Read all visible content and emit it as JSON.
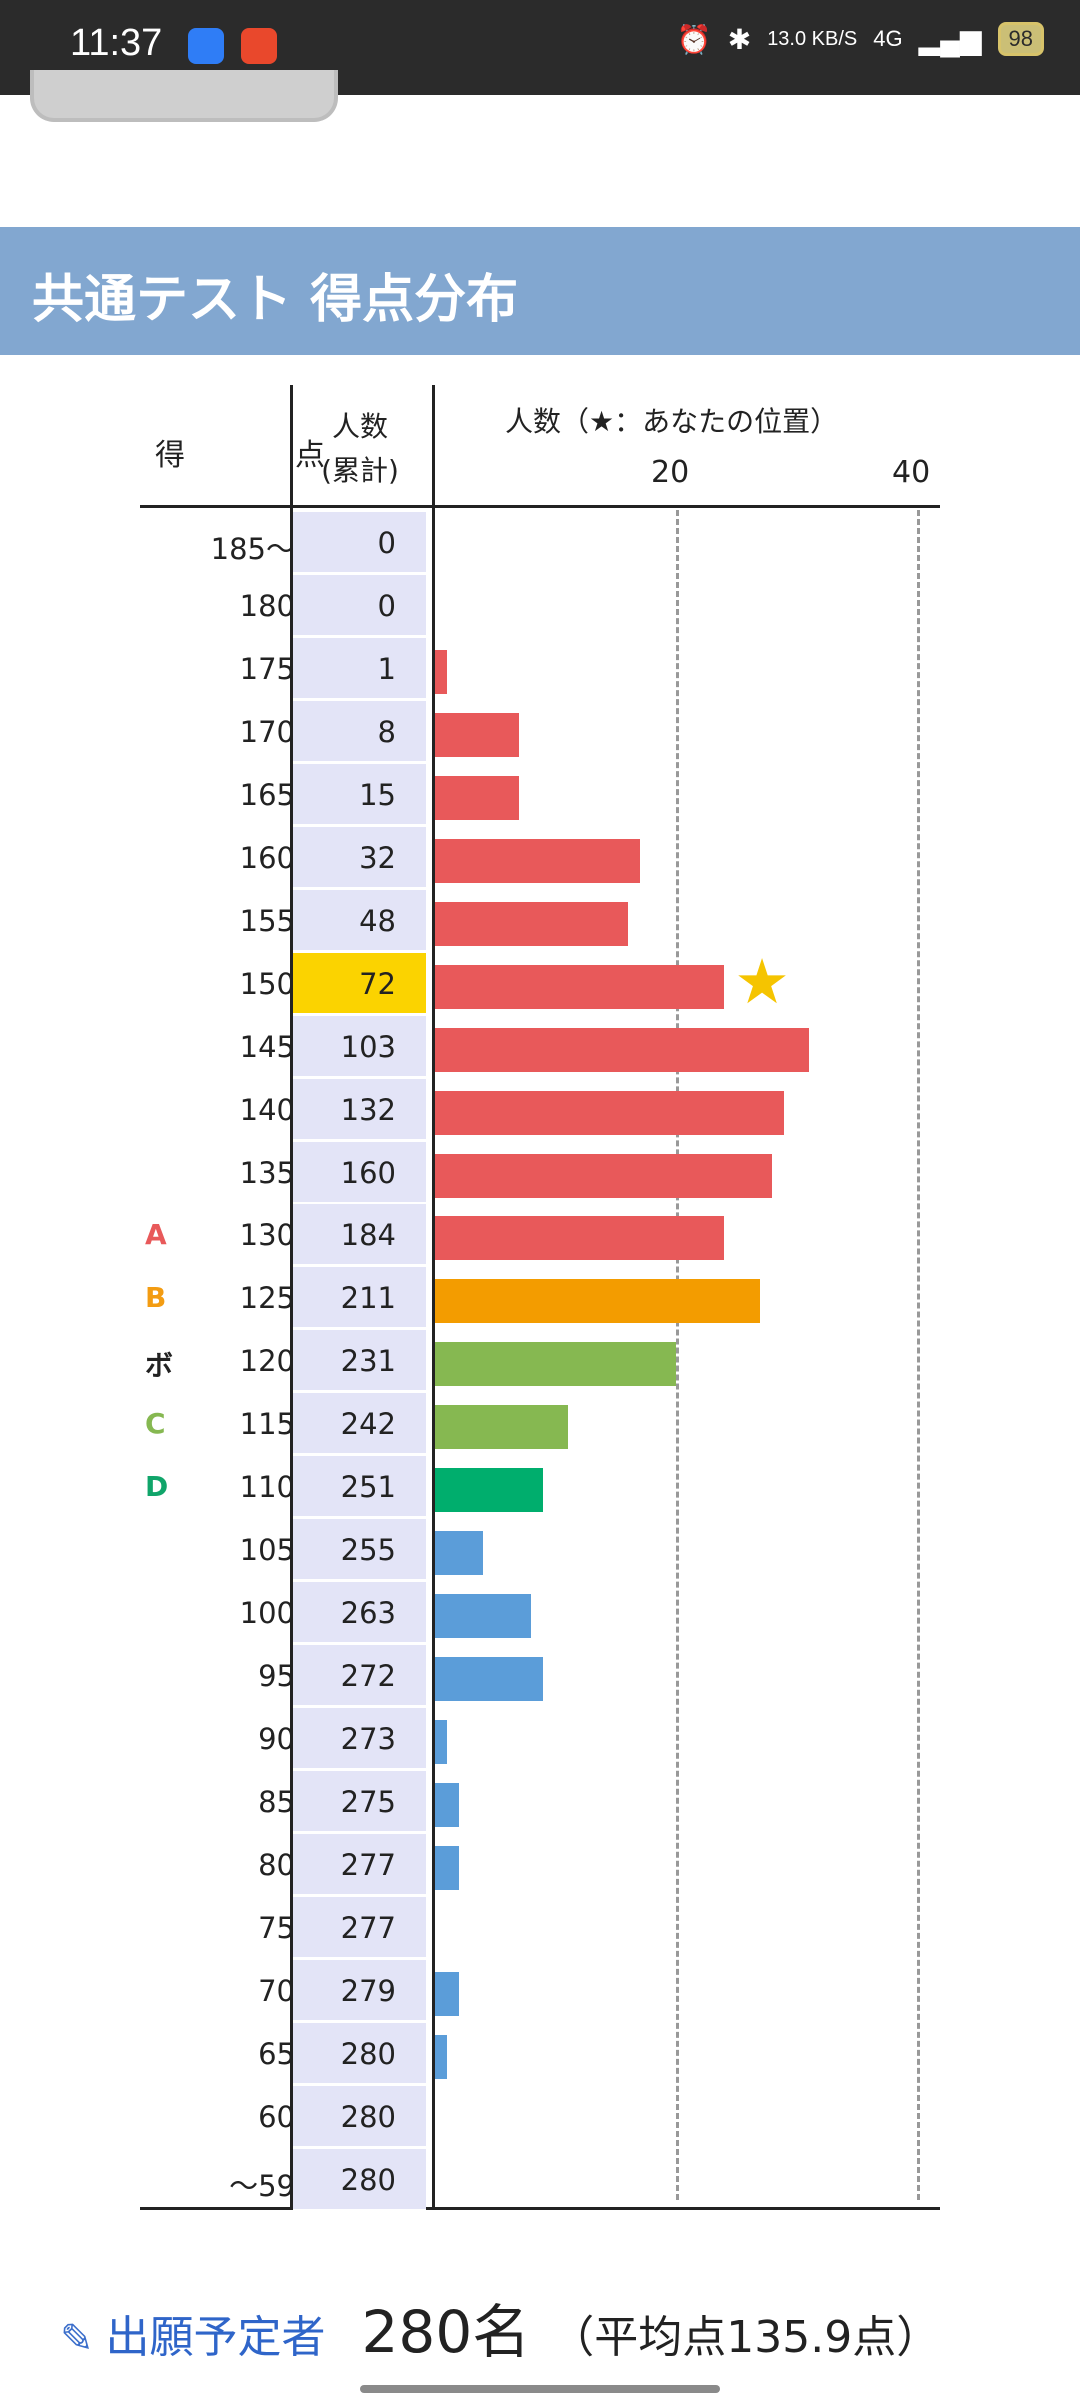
{
  "status_bar": {
    "time": "11:37",
    "net_speed": "13.0 KB/S",
    "network": "4G",
    "battery": "98"
  },
  "section": {
    "title": "共通テスト 得点分布"
  },
  "chart_data": {
    "type": "bar",
    "orientation": "horizontal",
    "columns": {
      "score": "得　点",
      "count_title": "人数",
      "count_sub": "(累計)",
      "bars": "人数（★：あなたの位置）"
    },
    "x_ticks": [
      20,
      40
    ],
    "xlim": [
      0,
      40
    ],
    "grid": "dashed vertical at ticks",
    "rows": [
      {
        "score": "185〜",
        "cumulative": 0,
        "count": 0,
        "grade": "",
        "color": "#e8595a"
      },
      {
        "score": "180",
        "cumulative": 0,
        "count": 0,
        "grade": "",
        "color": "#e8595a"
      },
      {
        "score": "175",
        "cumulative": 1,
        "count": 1,
        "grade": "",
        "color": "#e8595a"
      },
      {
        "score": "170",
        "cumulative": 8,
        "count": 7,
        "grade": "",
        "color": "#e8595a"
      },
      {
        "score": "165",
        "cumulative": 15,
        "count": 7,
        "grade": "",
        "color": "#e8595a"
      },
      {
        "score": "160",
        "cumulative": 32,
        "count": 17,
        "grade": "",
        "color": "#e8595a"
      },
      {
        "score": "155",
        "cumulative": 48,
        "count": 16,
        "grade": "",
        "color": "#e8595a"
      },
      {
        "score": "150",
        "cumulative": 72,
        "count": 24,
        "grade": "",
        "color": "#e8595a",
        "you": true
      },
      {
        "score": "145",
        "cumulative": 103,
        "count": 31,
        "grade": "",
        "color": "#e8595a"
      },
      {
        "score": "140",
        "cumulative": 132,
        "count": 29,
        "grade": "",
        "color": "#e8595a"
      },
      {
        "score": "135",
        "cumulative": 160,
        "count": 28,
        "grade": "",
        "color": "#e8595a"
      },
      {
        "score": "130",
        "cumulative": 184,
        "count": 24,
        "grade": "A",
        "grade_color": "#e8595a",
        "color": "#e8595a"
      },
      {
        "score": "125",
        "cumulative": 211,
        "count": 27,
        "grade": "B",
        "grade_color": "#f39c12",
        "color": "#f39c00"
      },
      {
        "score": "120",
        "cumulative": 231,
        "count": 20,
        "grade": "ボ",
        "grade_color": "#222222",
        "color": "#86b851"
      },
      {
        "score": "115",
        "cumulative": 242,
        "count": 11,
        "grade": "C",
        "grade_color": "#86b851",
        "color": "#86b851"
      },
      {
        "score": "110",
        "cumulative": 251,
        "count": 9,
        "grade": "D",
        "grade_color": "#10a56a",
        "color": "#00ae6d"
      },
      {
        "score": "105",
        "cumulative": 255,
        "count": 4,
        "grade": "",
        "color": "#5b9dd9"
      },
      {
        "score": "100",
        "cumulative": 263,
        "count": 8,
        "grade": "",
        "color": "#5b9dd9"
      },
      {
        "score": "95",
        "cumulative": 272,
        "count": 9,
        "grade": "",
        "color": "#5b9dd9"
      },
      {
        "score": "90",
        "cumulative": 273,
        "count": 1,
        "grade": "",
        "color": "#5b9dd9"
      },
      {
        "score": "85",
        "cumulative": 275,
        "count": 2,
        "grade": "",
        "color": "#5b9dd9"
      },
      {
        "score": "80",
        "cumulative": 277,
        "count": 2,
        "grade": "",
        "color": "#5b9dd9"
      },
      {
        "score": "75",
        "cumulative": 277,
        "count": 0,
        "grade": "",
        "color": "#5b9dd9"
      },
      {
        "score": "70",
        "cumulative": 279,
        "count": 2,
        "grade": "",
        "color": "#5b9dd9"
      },
      {
        "score": "65",
        "cumulative": 280,
        "count": 1,
        "grade": "",
        "color": "#5b9dd9"
      },
      {
        "score": "60",
        "cumulative": 280,
        "count": 0,
        "grade": "",
        "color": "#5b9dd9"
      },
      {
        "score": "〜59",
        "cumulative": 280,
        "count": 0,
        "grade": "",
        "color": "#5b9dd9"
      }
    ]
  },
  "footer": {
    "label": "出願予定者",
    "count": "280名",
    "average": "（平均点135.9点）"
  }
}
